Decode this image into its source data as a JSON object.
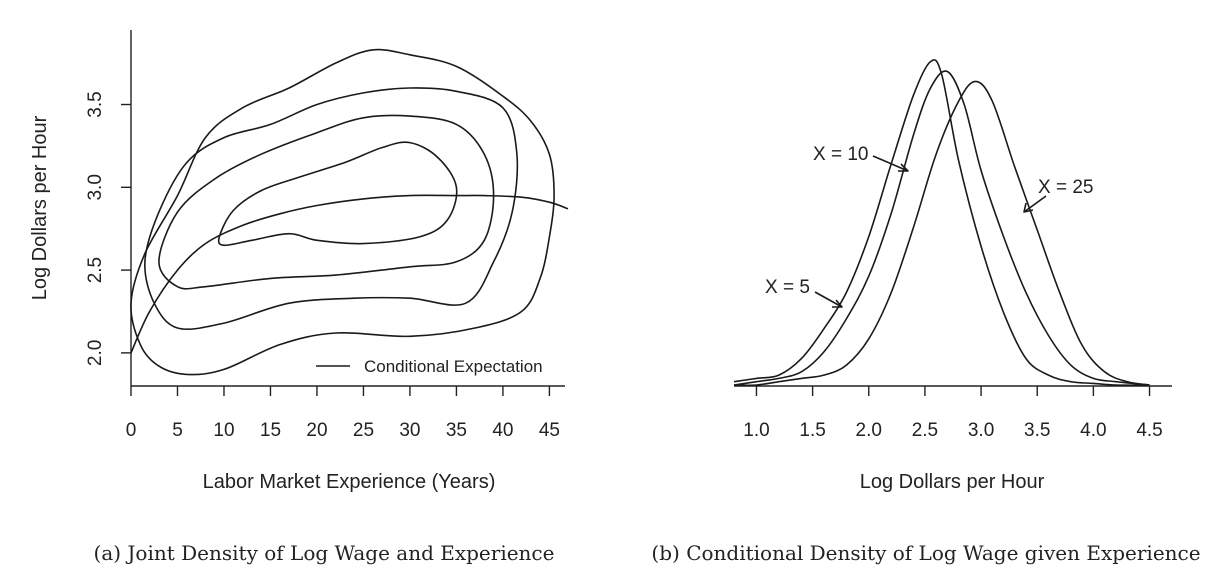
{
  "chart_data": [
    {
      "type": "contour",
      "caption": "(a) Joint Density of Log Wage and Experience",
      "xlabel": "Labor Market Experience (Years)",
      "ylabel": "Log Dollars per Hour",
      "xlim": [
        0,
        47
      ],
      "ylim": [
        1.8,
        3.95
      ],
      "xticks": [
        "0",
        "5",
        "10",
        "15",
        "20",
        "25",
        "30",
        "35",
        "40",
        "45"
      ],
      "yticks": [
        "2.0",
        "2.5",
        "3.0",
        "3.5"
      ],
      "legend": [
        "Conditional Expectation"
      ],
      "legend_position": "bottom-right",
      "contours": [
        {
          "level": 1,
          "points": [
            [
              0,
              2.3
            ],
            [
              1.5,
              2.6
            ],
            [
              5,
              2.95
            ],
            [
              8,
              3.3
            ],
            [
              12,
              3.48
            ],
            [
              17,
              3.6
            ],
            [
              22,
              3.75
            ],
            [
              26,
              3.83
            ],
            [
              30,
              3.8
            ],
            [
              35,
              3.73
            ],
            [
              40,
              3.55
            ],
            [
              43,
              3.4
            ],
            [
              45,
              3.2
            ],
            [
              45.5,
              2.95
            ],
            [
              45,
              2.7
            ],
            [
              44,
              2.45
            ],
            [
              42,
              2.25
            ],
            [
              37,
              2.15
            ],
            [
              30,
              2.1
            ],
            [
              22,
              2.12
            ],
            [
              16,
              2.05
            ],
            [
              10,
              1.9
            ],
            [
              6,
              1.87
            ],
            [
              3,
              1.92
            ],
            [
              1,
              2.05
            ],
            [
              0,
              2.3
            ]
          ]
        },
        {
          "level": 2,
          "points": [
            [
              1.5,
              2.55
            ],
            [
              3,
              2.85
            ],
            [
              6,
              3.15
            ],
            [
              10,
              3.3
            ],
            [
              15,
              3.38
            ],
            [
              20,
              3.5
            ],
            [
              25,
              3.57
            ],
            [
              30,
              3.6
            ],
            [
              35,
              3.58
            ],
            [
              40,
              3.48
            ],
            [
              41.5,
              3.2
            ],
            [
              41,
              2.85
            ],
            [
              39,
              2.55
            ],
            [
              36,
              2.3
            ],
            [
              30,
              2.33
            ],
            [
              24,
              2.33
            ],
            [
              17,
              2.3
            ],
            [
              10,
              2.18
            ],
            [
              5,
              2.15
            ],
            [
              2.5,
              2.3
            ],
            [
              1.5,
              2.55
            ]
          ]
        },
        {
          "level": 3,
          "points": [
            [
              3,
              2.55
            ],
            [
              5,
              2.85
            ],
            [
              9,
              3.05
            ],
            [
              14,
              3.2
            ],
            [
              20,
              3.33
            ],
            [
              25,
              3.42
            ],
            [
              30,
              3.43
            ],
            [
              35,
              3.38
            ],
            [
              38,
              3.2
            ],
            [
              39,
              2.95
            ],
            [
              38,
              2.68
            ],
            [
              35,
              2.55
            ],
            [
              30,
              2.52
            ],
            [
              22,
              2.47
            ],
            [
              15,
              2.45
            ],
            [
              8,
              2.4
            ],
            [
              5,
              2.4
            ],
            [
              3,
              2.55
            ]
          ]
        },
        {
          "level": 4,
          "points": [
            [
              9.5,
              2.7
            ],
            [
              11,
              2.86
            ],
            [
              14,
              2.98
            ],
            [
              18,
              3.06
            ],
            [
              23,
              3.15
            ],
            [
              27,
              3.24
            ],
            [
              30,
              3.27
            ],
            [
              33,
              3.18
            ],
            [
              35,
              3.0
            ],
            [
              34,
              2.8
            ],
            [
              31,
              2.7
            ],
            [
              25,
              2.66
            ],
            [
              20,
              2.68
            ],
            [
              17,
              2.72
            ],
            [
              13,
              2.68
            ],
            [
              10,
              2.65
            ],
            [
              9.5,
              2.7
            ]
          ]
        }
      ],
      "series": [
        {
          "name": "Conditional Expectation",
          "x": [
            0,
            2,
            5,
            8,
            12,
            16,
            20,
            25,
            30,
            35,
            38,
            42,
            45,
            47
          ],
          "y": [
            2.0,
            2.25,
            2.5,
            2.66,
            2.77,
            2.84,
            2.89,
            2.93,
            2.95,
            2.95,
            2.95,
            2.94,
            2.91,
            2.87
          ]
        }
      ]
    },
    {
      "type": "line",
      "caption": "(b) Conditional Density of Log Wage given Experience",
      "xlabel": "Log Dollars per Hour",
      "ylabel": "",
      "xlim": [
        0.8,
        4.7
      ],
      "ylim": [
        0,
        1.0
      ],
      "xticks": [
        "1.0",
        "1.5",
        "2.0",
        "2.5",
        "3.0",
        "3.5",
        "4.0",
        "4.5"
      ],
      "annotations": [
        "X = 5",
        "X = 10",
        "X = 25"
      ],
      "series": [
        {
          "name": "X = 5",
          "x": [
            0.8,
            1.0,
            1.2,
            1.4,
            1.6,
            1.8,
            2.0,
            2.2,
            2.4,
            2.55,
            2.65,
            2.8,
            3.0,
            3.2,
            3.4,
            3.6,
            3.8,
            4.0,
            4.2,
            4.5
          ],
          "y": [
            0.01,
            0.02,
            0.03,
            0.08,
            0.17,
            0.28,
            0.45,
            0.67,
            0.88,
            0.98,
            0.94,
            0.68,
            0.42,
            0.22,
            0.08,
            0.03,
            0.01,
            0.005,
            0.0,
            0.0
          ]
        },
        {
          "name": "X = 10",
          "x": [
            0.8,
            1.0,
            1.2,
            1.4,
            1.6,
            1.8,
            2.0,
            2.2,
            2.4,
            2.55,
            2.7,
            2.85,
            3.0,
            3.2,
            3.4,
            3.6,
            3.8,
            4.0,
            4.2,
            4.5
          ],
          "y": [
            0.0,
            0.01,
            0.02,
            0.04,
            0.1,
            0.2,
            0.33,
            0.52,
            0.76,
            0.9,
            0.95,
            0.85,
            0.65,
            0.45,
            0.28,
            0.15,
            0.06,
            0.02,
            0.01,
            0.0
          ]
        },
        {
          "name": "X = 25",
          "x": [
            0.8,
            1.0,
            1.2,
            1.4,
            1.6,
            1.8,
            2.0,
            2.2,
            2.4,
            2.6,
            2.8,
            2.95,
            3.1,
            3.3,
            3.5,
            3.7,
            3.9,
            4.1,
            4.3,
            4.5
          ],
          "y": [
            0.0,
            0.0,
            0.01,
            0.02,
            0.03,
            0.06,
            0.14,
            0.28,
            0.48,
            0.7,
            0.86,
            0.92,
            0.86,
            0.66,
            0.47,
            0.28,
            0.12,
            0.04,
            0.01,
            0.0
          ]
        }
      ]
    }
  ]
}
